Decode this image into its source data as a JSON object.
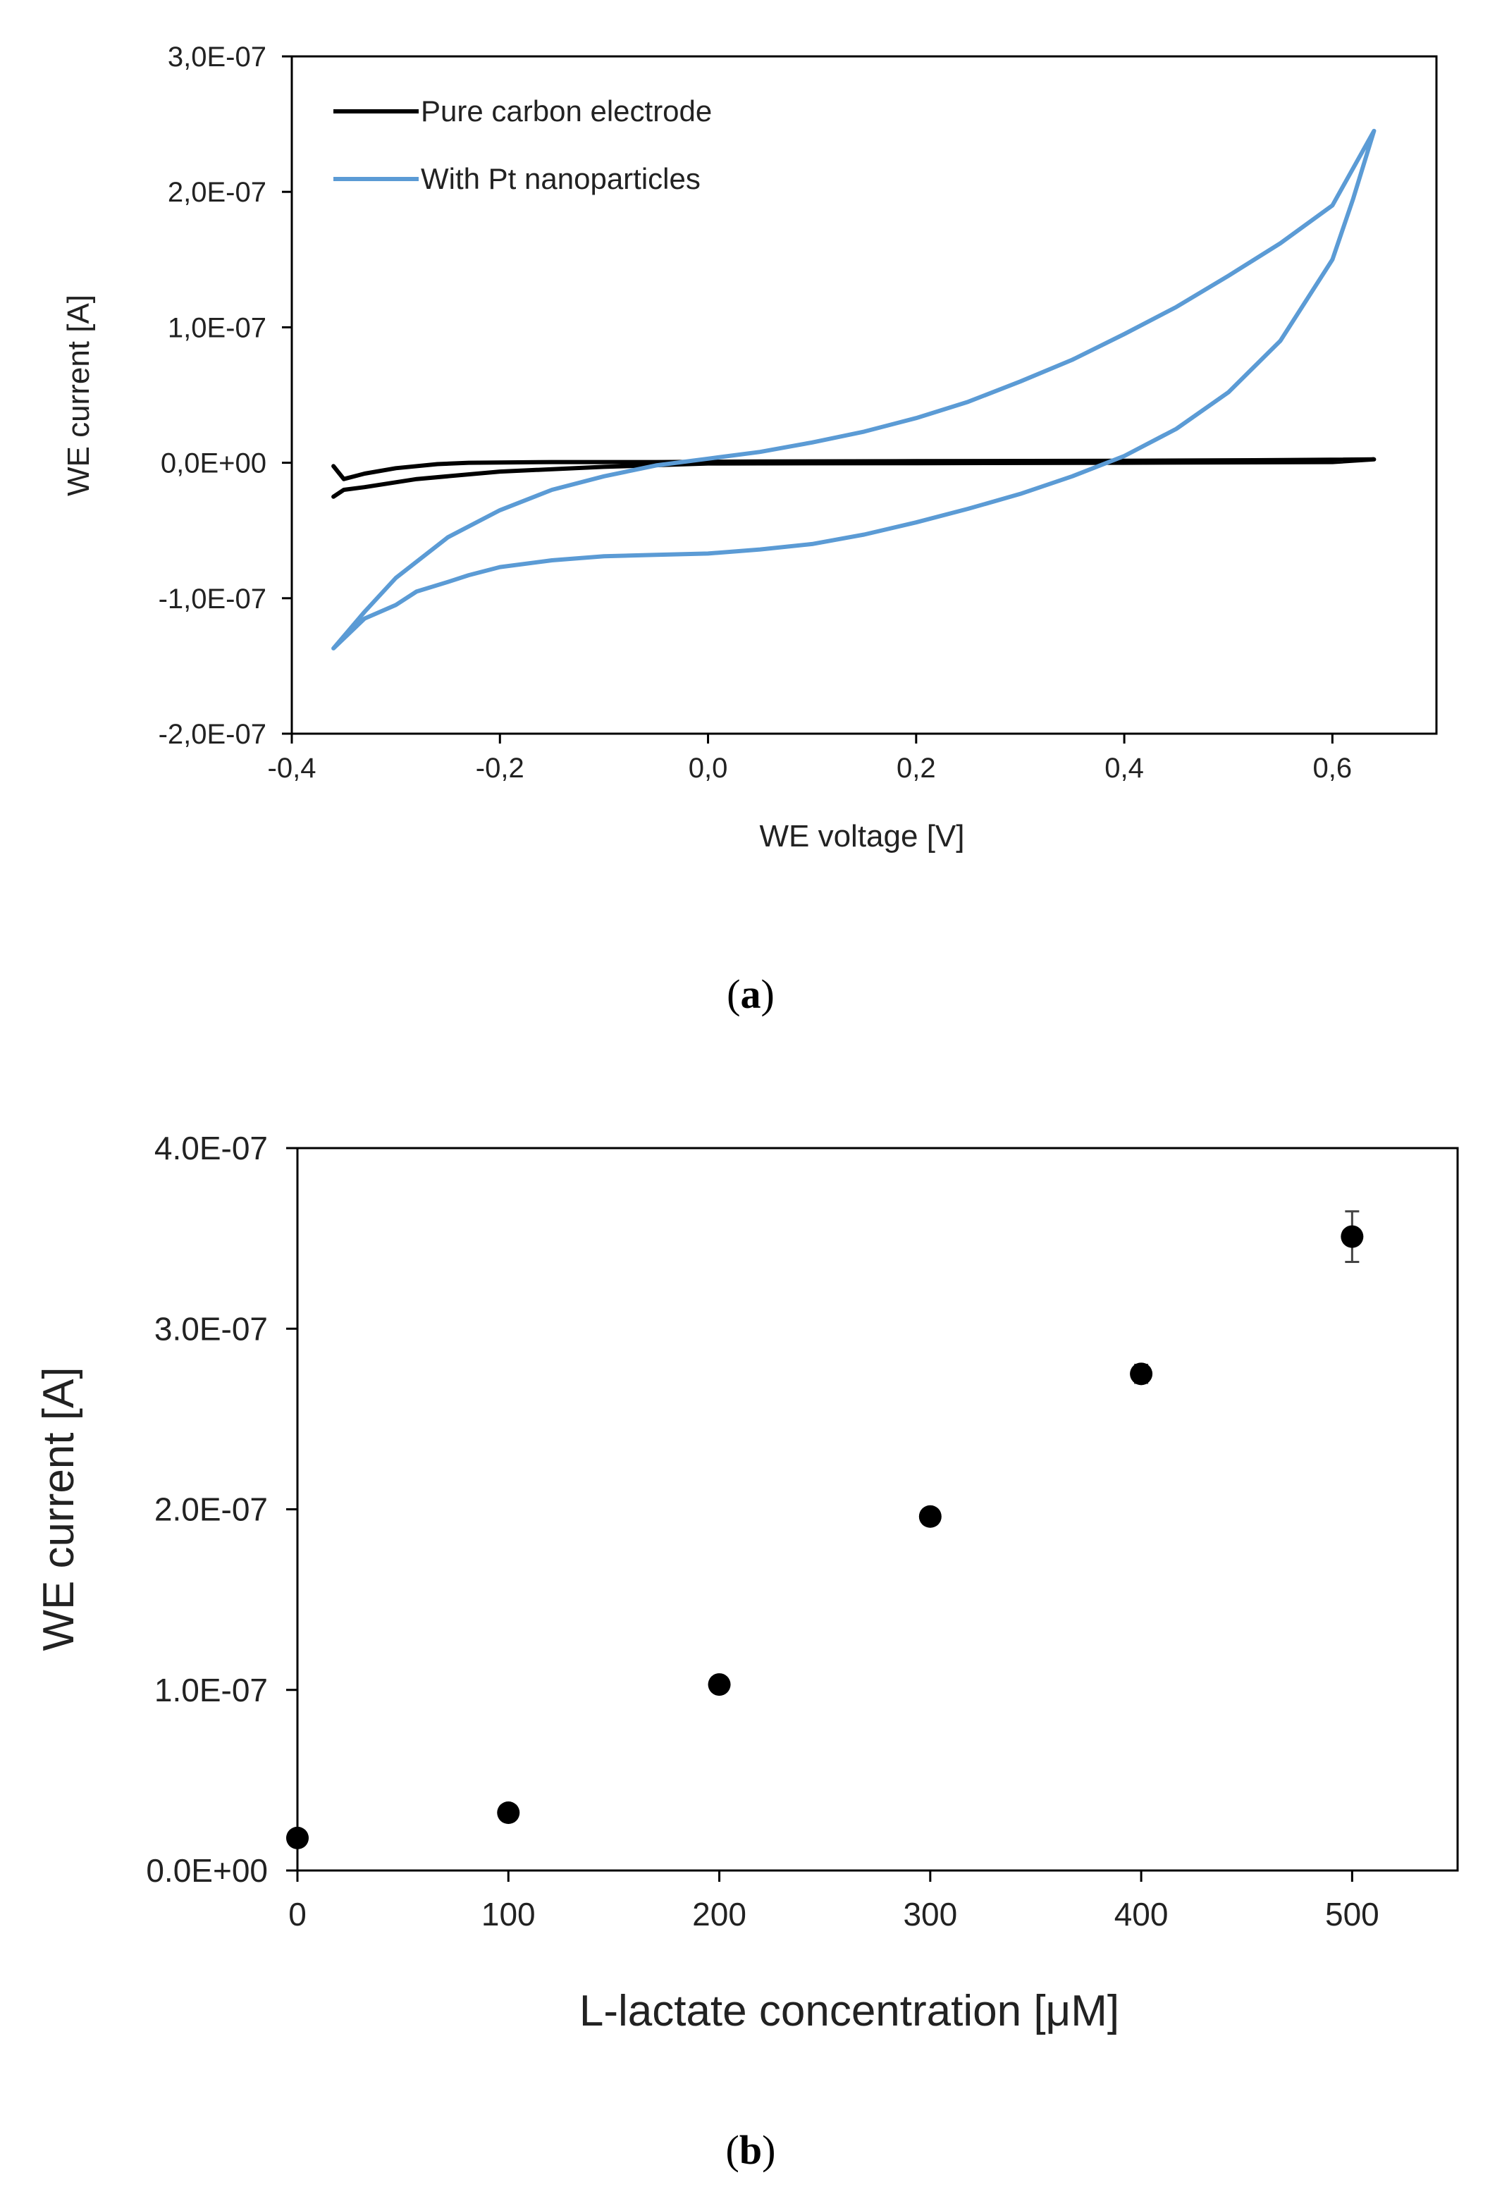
{
  "panels": [
    {
      "label_open": "(",
      "label_letter": "a",
      "label_close": ")"
    },
    {
      "label_open": "(",
      "label_letter": "b",
      "label_close": ")"
    }
  ],
  "chart_data": [
    {
      "type": "line",
      "title": "",
      "xlabel": "WE voltage [V]",
      "ylabel": "WE current [A]",
      "xlim": [
        -0.4,
        0.7
      ],
      "ylim": [
        -2e-07,
        3e-07
      ],
      "x_tick_values": [
        -0.4,
        -0.2,
        0.0,
        0.2,
        0.4,
        0.6
      ],
      "x_tick_labels": [
        "-0,4",
        "-0,2",
        "0,0",
        "0,2",
        "0,4",
        "0,6"
      ],
      "y_tick_values": [
        -2e-07,
        -1e-07,
        0.0,
        1e-07,
        2e-07,
        3e-07
      ],
      "y_tick_labels": [
        "-2,0E-07",
        "-1,0E-07",
        "0,0E+00",
        "1,0E-07",
        "2,0E-07",
        "3,0E-07"
      ],
      "grid": false,
      "legend_position": "top-left",
      "series": [
        {
          "name": "Pure carbon electrode",
          "color": "#000000",
          "x": [
            -0.36,
            -0.35,
            -0.33,
            -0.3,
            -0.26,
            -0.23,
            -0.15,
            -0.05,
            0.05,
            0.2,
            0.4,
            0.55,
            0.64,
            0.6,
            0.4,
            0.2,
            0.0,
            -0.1,
            -0.2,
            -0.28,
            -0.33,
            -0.35,
            -0.36
          ],
          "y": [
            -2.5e-09,
            -1.2e-08,
            -8e-09,
            -4e-09,
            -1e-09,
            0.0,
            5e-10,
            5e-10,
            1e-09,
            1.2e-09,
            1.5e-09,
            2e-09,
            2.5e-09,
            5e-10,
            0.0,
            -3e-10,
            -5e-10,
            -3e-09,
            -6.5e-09,
            -1.2e-08,
            -1.8e-08,
            -2e-08,
            -2.5e-08
          ]
        },
        {
          "name": "With Pt nanoparticles",
          "color": "#5b9bd5",
          "x": [
            -0.36,
            -0.33,
            -0.3,
            -0.25,
            -0.2,
            -0.15,
            -0.1,
            -0.05,
            0.0,
            0.05,
            0.1,
            0.15,
            0.2,
            0.25,
            0.3,
            0.35,
            0.4,
            0.45,
            0.5,
            0.55,
            0.6,
            0.64,
            0.62,
            0.6,
            0.55,
            0.5,
            0.45,
            0.4,
            0.35,
            0.3,
            0.25,
            0.2,
            0.15,
            0.1,
            0.05,
            0.0,
            -0.05,
            -0.1,
            -0.15,
            -0.2,
            -0.23,
            -0.25,
            -0.28,
            -0.3,
            -0.33,
            -0.36
          ],
          "y": [
            -1.37e-07,
            -1.1e-07,
            -8.5e-08,
            -5.5e-08,
            -3.5e-08,
            -2e-08,
            -1e-08,
            -2e-09,
            3e-09,
            8e-09,
            1.5e-08,
            2.3e-08,
            3.3e-08,
            4.5e-08,
            6e-08,
            7.6e-08,
            9.5e-08,
            1.15e-07,
            1.38e-07,
            1.62e-07,
            1.9e-07,
            2.45e-07,
            1.95e-07,
            1.5e-07,
            9e-08,
            5.2e-08,
            2.5e-08,
            5e-09,
            -1e-08,
            -2.3e-08,
            -3.4e-08,
            -4.4e-08,
            -5.3e-08,
            -6e-08,
            -6.4e-08,
            -6.7e-08,
            -6.8e-08,
            -6.9e-08,
            -7.2e-08,
            -7.7e-08,
            -8.3e-08,
            -8.8e-08,
            -9.5e-08,
            -1.05e-07,
            -1.15e-07,
            -1.37e-07
          ]
        }
      ]
    },
    {
      "type": "scatter",
      "title": "",
      "xlabel": "L-lactate concentration [μM]",
      "ylabel": "WE current [A]",
      "xlim": [
        0,
        550
      ],
      "ylim": [
        0,
        4e-07
      ],
      "x_tick_values": [
        0,
        100,
        200,
        300,
        400,
        500
      ],
      "x_tick_labels": [
        "0",
        "100",
        "200",
        "300",
        "400",
        "500"
      ],
      "y_tick_values": [
        0.0,
        1e-07,
        2e-07,
        3e-07,
        4e-07
      ],
      "y_tick_labels": [
        "0.0E+00",
        "1.0E-07",
        "2.0E-07",
        "3.0E-07",
        "4.0E-07"
      ],
      "grid": false,
      "series": [
        {
          "name": "WE current",
          "color": "#000000",
          "x": [
            0,
            100,
            200,
            300,
            400,
            500
          ],
          "y": [
            1.8e-08,
            3.2e-08,
            1.03e-07,
            1.96e-07,
            2.75e-07,
            3.51e-07
          ],
          "error": [
            1e-09,
            1e-09,
            4e-09,
            2e-09,
            5e-09,
            1.4e-08
          ]
        }
      ]
    }
  ]
}
